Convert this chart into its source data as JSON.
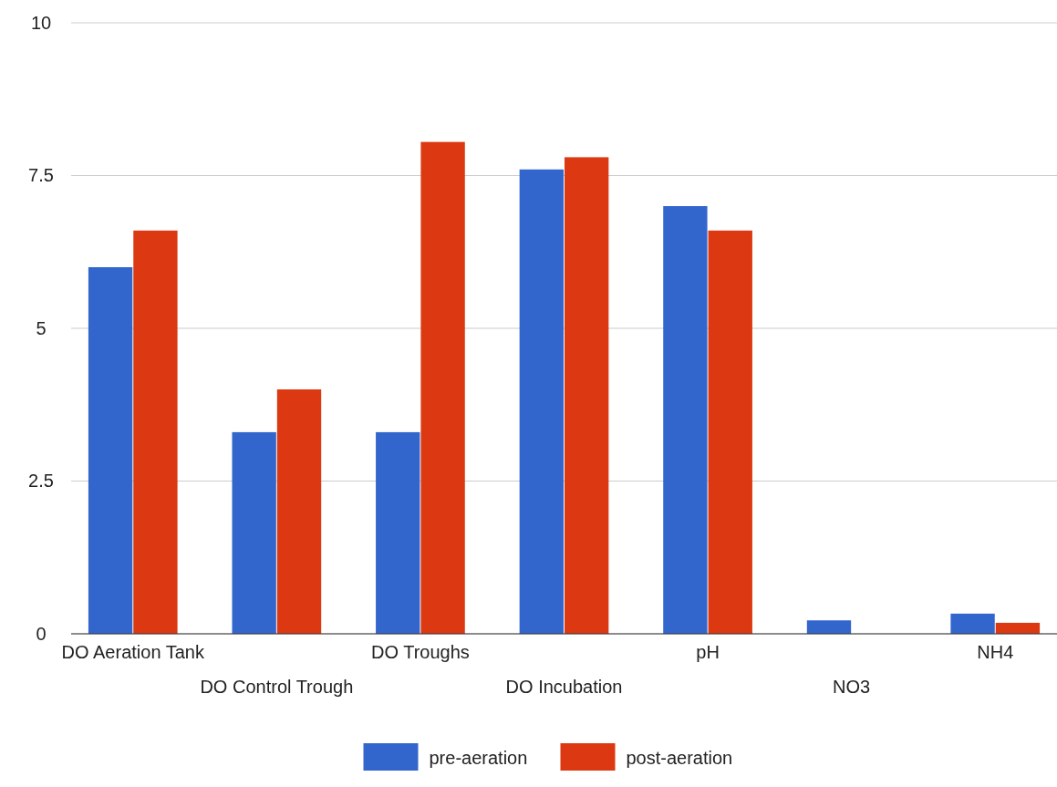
{
  "chart_data": {
    "type": "bar",
    "categories": [
      "DO Aeration Tank",
      "DO Control Trough",
      "DO Troughs",
      "DO Incubation",
      "pH",
      "NO3",
      "NH4"
    ],
    "series": [
      {
        "name": "pre-aeration",
        "color": "#3366cc",
        "values": [
          6.0,
          3.3,
          3.3,
          7.6,
          7.0,
          0.22,
          0.33
        ]
      },
      {
        "name": "post-aeration",
        "color": "#dc3912",
        "values": [
          6.6,
          4.0,
          8.05,
          7.8,
          6.6,
          null,
          0.18
        ]
      }
    ],
    "ylim": [
      0,
      10
    ],
    "yticks": [
      0,
      2.5,
      5,
      7.5,
      10
    ],
    "grid": "y",
    "legend": "bottom"
  }
}
